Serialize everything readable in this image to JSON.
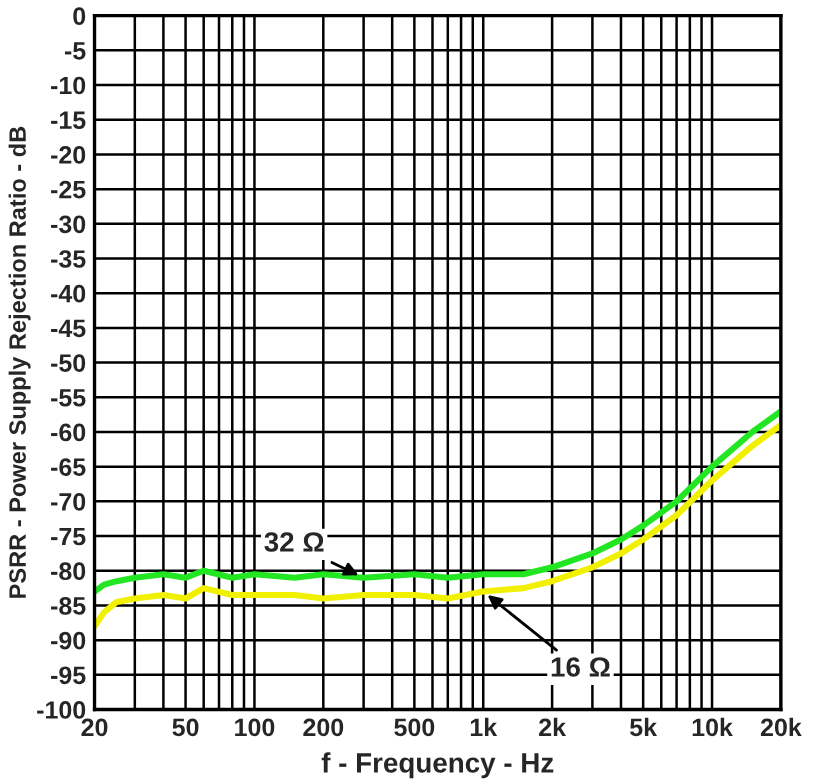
{
  "chart_data": {
    "type": "line",
    "xlabel": "f - Frequency - Hz",
    "ylabel": "PSRR - Power Supply Rejection Ratio - dB",
    "log": "x",
    "xlim": [
      20,
      20000
    ],
    "ylim": [
      -100,
      0
    ],
    "xticks": [
      20,
      {
        "value": 30,
        "label": null
      },
      {
        "value": 40,
        "label": null
      },
      50,
      {
        "value": 60,
        "label": null
      },
      {
        "value": 70,
        "label": null
      },
      {
        "value": 80,
        "label": null
      },
      {
        "value": 90,
        "label": null
      },
      100,
      200,
      {
        "value": 300,
        "label": null
      },
      {
        "value": 400,
        "label": null
      },
      500,
      {
        "value": 600,
        "label": null
      },
      {
        "value": 700,
        "label": null
      },
      {
        "value": 800,
        "label": null
      },
      {
        "value": 900,
        "label": null
      },
      {
        "value": 1000,
        "label": "1k"
      },
      {
        "value": 2000,
        "label": "2k"
      },
      {
        "value": 3000,
        "label": null
      },
      {
        "value": 4000,
        "label": null
      },
      {
        "value": 5000,
        "label": "5k"
      },
      {
        "value": 6000,
        "label": null
      },
      {
        "value": 7000,
        "label": null
      },
      {
        "value": 8000,
        "label": null
      },
      {
        "value": 9000,
        "label": null
      },
      {
        "value": 10000,
        "label": "10k"
      },
      {
        "value": 20000,
        "label": "20k"
      }
    ],
    "yticks": [
      -100,
      -95,
      -90,
      -85,
      -80,
      -75,
      -70,
      -65,
      -60,
      -55,
      -50,
      -45,
      -40,
      -35,
      -30,
      -25,
      -20,
      -15,
      -10,
      -5,
      0
    ],
    "grid": true,
    "series": [
      {
        "color": "#22e622",
        "x": [
          20,
          22,
          25,
          30,
          40,
          50,
          60,
          80,
          100,
          150,
          200,
          300,
          500,
          700,
          1000,
          1500,
          2000,
          3000,
          4000,
          5000,
          7000,
          10000,
          15000,
          20000
        ],
        "values": [
          -83,
          -82,
          -81.5,
          -81,
          -80.5,
          -81,
          -80,
          -81,
          -80.5,
          -81,
          -80.5,
          -81,
          -80.5,
          -81,
          -80.5,
          -80.5,
          -79.5,
          -77.5,
          -75.5,
          -73.5,
          -70,
          -65,
          -60,
          -57
        ]
      },
      {
        "color": "#f0f000",
        "x": [
          20,
          22,
          25,
          30,
          40,
          50,
          60,
          80,
          100,
          150,
          200,
          300,
          500,
          700,
          1000,
          1500,
          2000,
          3000,
          4000,
          5000,
          7000,
          10000,
          15000,
          20000
        ],
        "values": [
          -88,
          -86,
          -84.5,
          -84,
          -83.5,
          -84,
          -82.5,
          -83.5,
          -83.5,
          -83.5,
          -84,
          -83.5,
          -83.5,
          -84,
          -83,
          -82.5,
          -81.5,
          -79.5,
          -77.5,
          -75.5,
          -72,
          -67,
          -62,
          -59
        ]
      }
    ],
    "annotations": [
      {
        "text": "32 Ω",
        "x": 300,
        "y": -81
      },
      {
        "text": "16 Ω",
        "x": 1000,
        "y": -83
      }
    ]
  }
}
